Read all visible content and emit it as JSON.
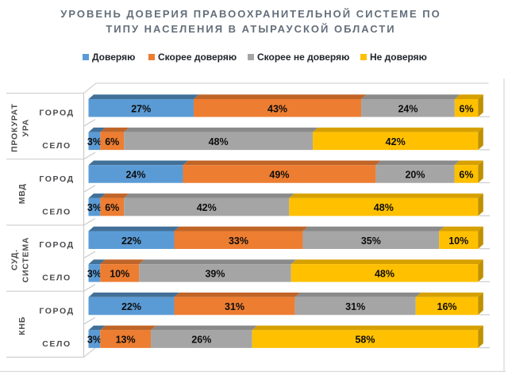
{
  "title": "УРОВЕНЬ ДОВЕРИЯ ПРАВООХРАНИТЕЛЬНОЙ СИСТЕМЕ ПО ТИПУ НАСЕЛЕНИЯ В АТЫРАУСКОЙ ОБЛАСТИ",
  "chart_data": {
    "type": "bar",
    "variant": "3d-horizontal-100pct-stacked",
    "title": "УРОВЕНЬ ДОВЕРИЯ ПРАВООХРАНИТЕЛЬНОЙ СИСТЕМЕ ПО ТИПУ НАСЕЛЕНИЯ В АТЫРАУСКОЙ ОБЛАСТИ",
    "value_suffix": "%",
    "xlim": [
      0,
      100
    ],
    "legend_position": "top",
    "grid": false,
    "groups": [
      {
        "label": "ПРОКУРАТУРА",
        "label_lines": [
          "ПРОКУРАТ",
          "УРА"
        ]
      },
      {
        "label": "МВД",
        "label_lines": [
          "МВД"
        ]
      },
      {
        "label": "СУД. СИСТЕМА",
        "label_lines": [
          "СУД.",
          "СИСТЕМА"
        ]
      },
      {
        "label": "КНБ",
        "label_lines": [
          "КНБ"
        ]
      }
    ],
    "categories": [
      "ГОРОД",
      "СЕЛО",
      "ГОРОД",
      "СЕЛО",
      "ГОРОД",
      "СЕЛО",
      "ГОРОД",
      "СЕЛО"
    ],
    "series": [
      {
        "name": "Доверяю",
        "color": "#5B9BD5",
        "values": [
          27,
          3,
          24,
          3,
          22,
          3,
          22,
          3
        ]
      },
      {
        "name": "Скорее доверяю",
        "color": "#ED7D31",
        "values": [
          43,
          6,
          49,
          6,
          33,
          10,
          31,
          13
        ]
      },
      {
        "name": "Скорее не доверяю",
        "color": "#A5A5A5",
        "values": [
          24,
          48,
          20,
          42,
          35,
          39,
          31,
          26
        ]
      },
      {
        "name": "Не доверяю",
        "color": "#FFC000",
        "values": [
          6,
          42,
          6,
          48,
          10,
          48,
          16,
          58
        ]
      }
    ],
    "data_labels": [
      [
        "27%",
        "43%",
        "24%",
        "6%"
      ],
      [
        "3%",
        "6%",
        "48%",
        "42%"
      ],
      [
        "24%",
        "49%",
        "20%",
        "6%"
      ],
      [
        "3%",
        "6%",
        "42%",
        "48%"
      ],
      [
        "22%",
        "33%",
        "35%",
        "10%"
      ],
      [
        "3%",
        "10%",
        "39%",
        "48%"
      ],
      [
        "22%",
        "31%",
        "31%",
        "16%"
      ],
      [
        "3%",
        "13%",
        "26%",
        "58%"
      ]
    ]
  }
}
